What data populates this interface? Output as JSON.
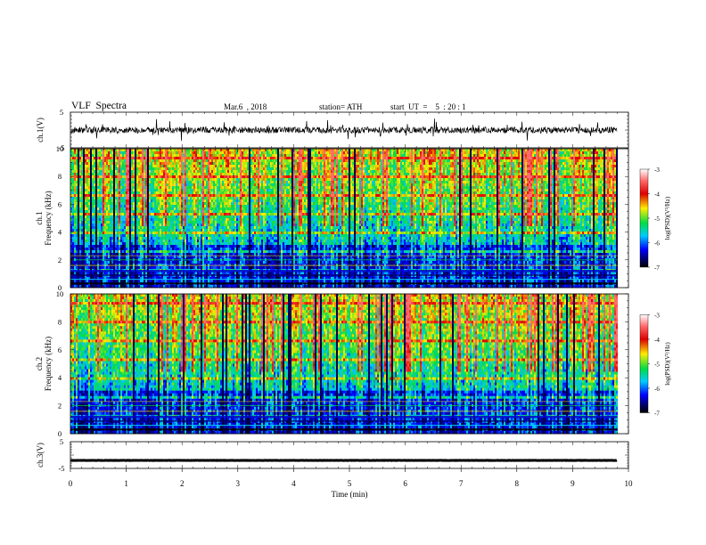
{
  "header": {
    "title": "VLF  Spectra",
    "date": "Mar.6  , 2018",
    "station": "station= ATH",
    "start": "start  UT  =    5  : 20 : 1"
  },
  "chart_data": [
    {
      "type": "line",
      "name": "ch1-waveform",
      "ylabel": "ch.1(V)",
      "ylim": [
        -5,
        5
      ],
      "yticks": [
        "5",
        "-5"
      ],
      "color": "#000000",
      "trace": {
        "mean": 0,
        "noise_amplitude": 0.9,
        "spike_amplitude": 2.5
      }
    },
    {
      "type": "heatmap",
      "name": "ch1-spectrogram",
      "ylabel": "Frequency  (kHz)",
      "channel_label": "ch.1",
      "ylim": [
        0,
        10
      ],
      "yticks": [
        "0",
        "2",
        "4",
        "6",
        "8",
        "10"
      ],
      "colorbar": {
        "label": "log(PSD)(V²/Hz)",
        "range": [
          -7,
          -3
        ],
        "ticks": [
          "-3",
          "-4",
          "-5",
          "-6",
          "-7"
        ]
      }
    },
    {
      "type": "heatmap",
      "name": "ch2-spectrogram",
      "ylabel": "Frequency  (kHz)",
      "channel_label": "ch.2",
      "ylim": [
        0,
        10
      ],
      "yticks": [
        "0",
        "2",
        "4",
        "6",
        "8",
        "10"
      ],
      "colorbar": {
        "label": "log(PSD)(V²/Hz)",
        "range": [
          -7,
          -3
        ],
        "ticks": [
          "-3",
          "-4",
          "-5",
          "-6",
          "-7"
        ]
      }
    },
    {
      "type": "line",
      "name": "ch3-waveform",
      "ylabel": "ch.3(V)",
      "ylim": [
        -5,
        5
      ],
      "yticks": [
        "5",
        "-5"
      ],
      "color": "#000000",
      "trace": {
        "mean": -2,
        "noise_amplitude": 0.05
      }
    }
  ],
  "xaxis": {
    "label": "Time  (min)",
    "range": [
      0,
      10
    ],
    "ticks": [
      "0",
      "1",
      "2",
      "3",
      "4",
      "5",
      "6",
      "7",
      "8",
      "9",
      "10"
    ],
    "data_end": 9.8
  }
}
